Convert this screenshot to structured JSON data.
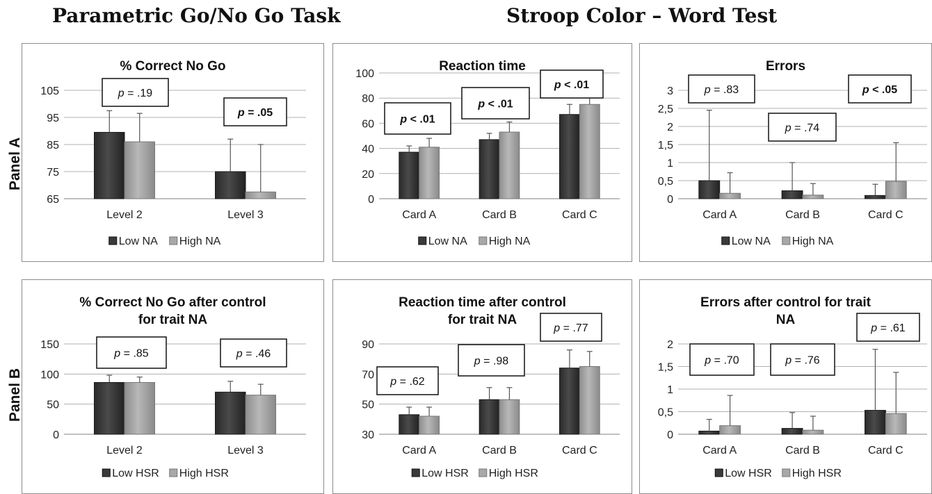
{
  "headers": {
    "left": "Parametric Go/No Go Task",
    "right": "Stroop Color – Word Test"
  },
  "panel_labels": {
    "a": "Panel A",
    "b": "Panel B"
  },
  "colors": {
    "dark_bar": "#3a3a3a",
    "light_bar": "#a8a8a8",
    "grid": "#b0b0b0",
    "axis": "#808080"
  },
  "chart_data": [
    {
      "id": "a1",
      "type": "bar",
      "title": [
        "% Correct No Go"
      ],
      "categories": [
        "Level 2",
        "Level 3"
      ],
      "ylim": [
        65,
        105
      ],
      "yticks": [
        65,
        75,
        85,
        95,
        105
      ],
      "tick_labels": [
        "65",
        "75",
        "85",
        "95",
        "105"
      ],
      "series": [
        {
          "name": "Low NA",
          "values": [
            89.5,
            75
          ],
          "error_upper": [
            97.5,
            87
          ]
        },
        {
          "name": "High NA",
          "values": [
            86,
            67.5
          ],
          "error_upper": [
            96.5,
            85
          ]
        }
      ],
      "annotations": [
        {
          "text_italic": "p",
          "text_rest": " = .19",
          "bold": false,
          "cat": 0
        },
        {
          "text_italic": "p",
          "text_rest": " = .05",
          "bold": true,
          "cat": 1
        }
      ],
      "legend": "bottom",
      "grid": true
    },
    {
      "id": "a2",
      "type": "bar",
      "title": [
        "Reaction time"
      ],
      "categories": [
        "Card A",
        "Card B",
        "Card C"
      ],
      "ylim": [
        0,
        100
      ],
      "yticks": [
        0,
        20,
        40,
        60,
        80,
        100
      ],
      "tick_labels": [
        "0",
        "20",
        "40",
        "60",
        "80",
        "100"
      ],
      "series": [
        {
          "name": "Low NA",
          "values": [
            37,
            47,
            67
          ],
          "error_upper": [
            42,
            52,
            75
          ]
        },
        {
          "name": "High NA",
          "values": [
            41,
            53,
            75
          ],
          "error_upper": [
            48,
            61,
            85
          ]
        }
      ],
      "annotations": [
        {
          "text_italic": "p",
          "text_rest": " < .01",
          "bold": true,
          "cat": 0
        },
        {
          "text_italic": "p",
          "text_rest": " < .01",
          "bold": true,
          "cat": 1
        },
        {
          "text_italic": "p",
          "text_rest": " < .01",
          "bold": true,
          "cat": 2
        }
      ],
      "legend": "bottom",
      "grid": true
    },
    {
      "id": "a3",
      "type": "bar",
      "title": [
        "Errors"
      ],
      "categories": [
        "Card A",
        "Card B",
        "Card C"
      ],
      "ylim": [
        0,
        3
      ],
      "yticks": [
        0,
        0.5,
        1,
        1.5,
        2,
        2.5,
        3
      ],
      "tick_labels": [
        "0",
        "0,5",
        "1",
        "1,5",
        "2",
        "2,5",
        "3"
      ],
      "series": [
        {
          "name": "Low NA",
          "values": [
            0.5,
            0.22,
            0.09
          ],
          "error_upper": [
            2.45,
            1.0,
            0.4
          ]
        },
        {
          "name": "High NA",
          "values": [
            0.15,
            0.1,
            0.48
          ],
          "error_upper": [
            0.72,
            0.42,
            1.55
          ]
        }
      ],
      "annotations": [
        {
          "text_italic": "p",
          "text_rest": " = .83",
          "bold": false,
          "cat": 0
        },
        {
          "text_italic": "p",
          "text_rest": " = .74",
          "bold": false,
          "cat": 1
        },
        {
          "text_italic": "p",
          "text_rest": " < .05",
          "bold": true,
          "cat": 2
        }
      ],
      "legend": "bottom",
      "grid": true
    },
    {
      "id": "b1",
      "type": "bar",
      "title": [
        "% Correct No Go after control",
        "for trait NA"
      ],
      "categories": [
        "Level 2",
        "Level 3"
      ],
      "ylim": [
        0,
        150
      ],
      "yticks": [
        0,
        50,
        100,
        150
      ],
      "tick_labels": [
        "0",
        "50",
        "100",
        "150"
      ],
      "series": [
        {
          "name": "Low HSR",
          "values": [
            86,
            70
          ],
          "error_upper": [
            98,
            88
          ]
        },
        {
          "name": "High HSR",
          "values": [
            86,
            65
          ],
          "error_upper": [
            95,
            83
          ]
        }
      ],
      "annotations": [
        {
          "text_italic": "p",
          "text_rest": " = .85",
          "bold": false,
          "cat": 0
        },
        {
          "text_italic": "p",
          "text_rest": " = .46",
          "bold": false,
          "cat": 1
        }
      ],
      "legend": "bottom",
      "grid": true
    },
    {
      "id": "b2",
      "type": "bar",
      "title": [
        "Reaction time after control",
        "for trait NA"
      ],
      "categories": [
        "Card A",
        "Card B",
        "Card C"
      ],
      "ylim": [
        30,
        90
      ],
      "yticks": [
        30,
        50,
        70,
        90
      ],
      "tick_labels": [
        "30",
        "50",
        "70",
        "90"
      ],
      "series": [
        {
          "name": "Low HSR",
          "values": [
            43,
            53,
            74
          ],
          "error_upper": [
            48,
            61,
            86
          ]
        },
        {
          "name": "High HSR",
          "values": [
            42,
            53,
            75
          ],
          "error_upper": [
            48,
            61,
            85
          ]
        }
      ],
      "annotations": [
        {
          "text_italic": "p",
          "text_rest": " = .62",
          "bold": false,
          "cat": 0
        },
        {
          "text_italic": "p",
          "text_rest": " = .98",
          "bold": false,
          "cat": 1
        },
        {
          "text_italic": "p",
          "text_rest": " = .77",
          "bold": false,
          "cat": 2
        }
      ],
      "legend": "bottom",
      "grid": true
    },
    {
      "id": "b3",
      "type": "bar",
      "title": [
        "Errors after control for trait",
        "NA"
      ],
      "categories": [
        "Card A",
        "Card B",
        "Card C"
      ],
      "ylim": [
        0,
        2
      ],
      "yticks": [
        0,
        0.5,
        1,
        1.5,
        2
      ],
      "tick_labels": [
        "0",
        "0,5",
        "1",
        "1,5",
        "2"
      ],
      "series": [
        {
          "name": "Low HSR",
          "values": [
            0.07,
            0.13,
            0.53
          ],
          "error_upper": [
            0.33,
            0.48,
            1.88
          ]
        },
        {
          "name": "High HSR",
          "values": [
            0.19,
            0.09,
            0.46
          ],
          "error_upper": [
            0.86,
            0.4,
            1.37
          ]
        }
      ],
      "annotations": [
        {
          "text_italic": "p",
          "text_rest": " = .70",
          "bold": false,
          "cat": 0
        },
        {
          "text_italic": "p",
          "text_rest": " = .76",
          "bold": false,
          "cat": 1
        },
        {
          "text_italic": "p",
          "text_rest": " = .61",
          "bold": false,
          "cat": 2
        }
      ],
      "legend": "bottom",
      "grid": true
    }
  ]
}
